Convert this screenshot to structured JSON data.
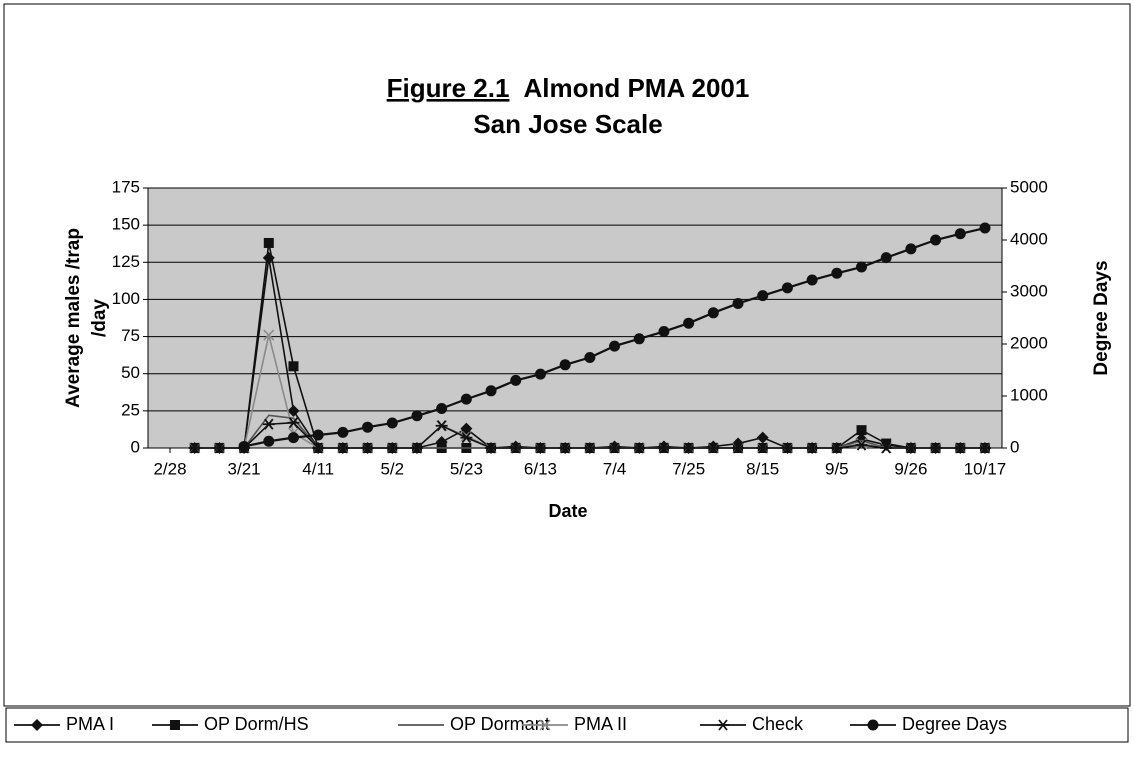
{
  "chart_data": {
    "type": "line",
    "title_label": "Figure 2.1",
    "title": "Almond PMA 2001",
    "subtitle": "San Jose Scale",
    "xlabel": "Date",
    "ylabel": [
      "Average males /trap",
      "/day"
    ],
    "y2label": "Degree Days",
    "categories": [
      "2/28",
      null,
      null,
      "3/21",
      null,
      null,
      "4/11",
      null,
      null,
      "5/2",
      null,
      null,
      "5/23",
      null,
      null,
      "6/13",
      null,
      null,
      "7/4",
      null,
      null,
      "7/25",
      null,
      null,
      "8/15",
      null,
      null,
      "9/5",
      null,
      null,
      "9/26",
      null,
      null,
      "10/17"
    ],
    "ylim": [
      0,
      175
    ],
    "yticks": [
      0,
      25,
      50,
      75,
      100,
      125,
      150,
      175
    ],
    "y2lim": [
      0,
      5000
    ],
    "y2ticks": [
      0,
      1000,
      2000,
      3000,
      4000,
      5000
    ],
    "grid": true,
    "legend": "bottom",
    "series": [
      {
        "name": "PMA I",
        "color": "#111111",
        "marker": "diamond",
        "values": [
          null,
          0,
          0,
          0,
          128,
          25,
          0,
          0,
          0,
          0,
          0,
          4,
          13,
          0,
          1,
          0,
          0,
          0,
          1,
          0,
          1,
          0,
          1,
          3,
          7,
          0,
          0,
          0,
          6,
          2,
          0,
          0,
          0,
          0
        ]
      },
      {
        "name": "OP Dorm/HS",
        "color": "#111111",
        "marker": "square",
        "values": [
          null,
          0,
          0,
          0,
          138,
          55,
          0,
          0,
          0,
          0,
          0,
          0,
          0,
          0,
          0,
          0,
          0,
          0,
          0,
          0,
          0,
          0,
          0,
          0,
          0,
          0,
          0,
          0,
          12,
          3,
          0,
          0,
          0,
          0
        ]
      },
      {
        "name": "OP Dormant",
        "color": "#555555",
        "marker": "none",
        "values": [
          null,
          0,
          0,
          0,
          22,
          20,
          0,
          0,
          0,
          0,
          0,
          0,
          0,
          0,
          0,
          0,
          0,
          0,
          0,
          0,
          0,
          0,
          0,
          0,
          0,
          0,
          0,
          0,
          5,
          0,
          0,
          0,
          0,
          0
        ]
      },
      {
        "name": "PMA II",
        "color": "#8a8a8a",
        "marker": "x",
        "values": [
          null,
          0,
          0,
          0,
          76,
          10,
          0,
          0,
          0,
          0,
          0,
          15,
          8,
          0,
          0,
          0,
          0,
          0,
          0,
          0,
          0,
          0,
          0,
          0,
          0,
          0,
          0,
          0,
          3,
          0,
          0,
          0,
          0,
          0
        ]
      },
      {
        "name": "Check",
        "color": "#111111",
        "marker": "asterisk",
        "values": [
          null,
          0,
          0,
          0,
          16,
          17,
          0,
          0,
          0,
          0,
          0,
          15,
          7,
          0,
          0,
          0,
          0,
          0,
          0,
          0,
          0,
          0,
          0,
          0,
          0,
          0,
          0,
          0,
          2,
          0,
          0,
          0,
          0,
          0
        ]
      },
      {
        "name": "Degree Days",
        "color": "#111111",
        "marker": "circle",
        "axis": "y2",
        "values": [
          null,
          null,
          null,
          30,
          130,
          200,
          250,
          300,
          400,
          480,
          620,
          760,
          940,
          1100,
          1300,
          1420,
          1600,
          1740,
          1960,
          2100,
          2240,
          2400,
          2600,
          2780,
          2930,
          3080,
          3230,
          3360,
          3480,
          3660,
          3830,
          4000,
          4120,
          4230
        ]
      }
    ]
  }
}
